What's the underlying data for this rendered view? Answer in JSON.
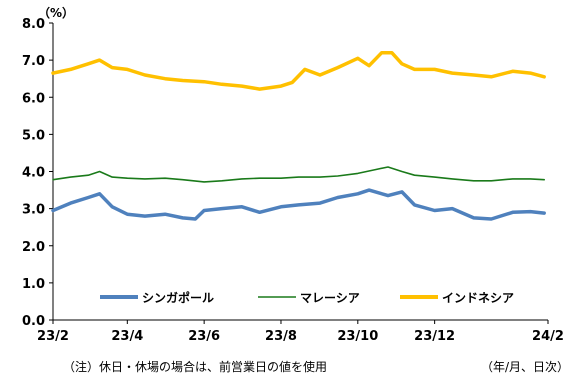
{
  "chart_data": {
    "type": "line",
    "unit_label": "（%）",
    "y_ticks": [
      "0.0",
      "1.0",
      "2.0",
      "3.0",
      "4.0",
      "5.0",
      "6.0",
      "7.0",
      "8.0"
    ],
    "ylim": [
      0,
      8
    ],
    "x_ticks": [
      "23/2",
      "23/4",
      "23/6",
      "23/8",
      "23/10",
      "23/12",
      "24/2"
    ],
    "x_range": [
      "2023-02-01",
      "2024-02-29"
    ],
    "grid": false,
    "legend_position": "bottom-inside",
    "series": [
      {
        "name": "シンガポール",
        "color": "#4f81bd",
        "x": [
          "2023-02-01",
          "2023-02-15",
          "2023-03-01",
          "2023-03-10",
          "2023-03-20",
          "2023-04-01",
          "2023-04-15",
          "2023-05-01",
          "2023-05-15",
          "2023-05-25",
          "2023-06-01",
          "2023-06-15",
          "2023-07-01",
          "2023-07-15",
          "2023-08-01",
          "2023-08-15",
          "2023-09-01",
          "2023-09-15",
          "2023-10-01",
          "2023-10-10",
          "2023-10-25",
          "2023-11-05",
          "2023-11-15",
          "2023-12-01",
          "2023-12-15",
          "2024-01-01",
          "2024-01-15",
          "2024-02-01",
          "2024-02-15",
          "2024-02-26"
        ],
        "values": [
          2.95,
          3.15,
          3.3,
          3.4,
          3.05,
          2.85,
          2.8,
          2.85,
          2.75,
          2.72,
          2.95,
          3.0,
          3.05,
          2.9,
          3.05,
          3.1,
          3.15,
          3.3,
          3.4,
          3.5,
          3.35,
          3.45,
          3.1,
          2.95,
          3.0,
          2.75,
          2.72,
          2.9,
          2.92,
          2.88
        ]
      },
      {
        "name": "マレーシア",
        "color": "#1a7a1a",
        "x": [
          "2023-02-01",
          "2023-02-15",
          "2023-03-01",
          "2023-03-10",
          "2023-03-20",
          "2023-04-01",
          "2023-04-15",
          "2023-05-01",
          "2023-05-15",
          "2023-06-01",
          "2023-06-15",
          "2023-07-01",
          "2023-07-15",
          "2023-08-01",
          "2023-08-15",
          "2023-09-01",
          "2023-09-15",
          "2023-10-01",
          "2023-10-15",
          "2023-10-25",
          "2023-11-05",
          "2023-11-15",
          "2023-12-01",
          "2023-12-15",
          "2024-01-01",
          "2024-01-15",
          "2024-02-01",
          "2024-02-15",
          "2024-02-26"
        ],
        "values": [
          3.78,
          3.85,
          3.9,
          4.0,
          3.85,
          3.82,
          3.8,
          3.82,
          3.78,
          3.72,
          3.75,
          3.8,
          3.82,
          3.82,
          3.85,
          3.85,
          3.88,
          3.95,
          4.05,
          4.12,
          4.0,
          3.9,
          3.85,
          3.8,
          3.75,
          3.75,
          3.8,
          3.8,
          3.78
        ]
      },
      {
        "name": "インドネシア",
        "color": "#ffc000",
        "x": [
          "2023-02-01",
          "2023-02-15",
          "2023-03-01",
          "2023-03-10",
          "2023-03-20",
          "2023-04-01",
          "2023-04-15",
          "2023-05-01",
          "2023-05-15",
          "2023-06-01",
          "2023-06-15",
          "2023-07-01",
          "2023-07-15",
          "2023-08-01",
          "2023-08-10",
          "2023-08-20",
          "2023-09-01",
          "2023-09-15",
          "2023-10-01",
          "2023-10-10",
          "2023-10-20",
          "2023-10-28",
          "2023-11-05",
          "2023-11-15",
          "2023-12-01",
          "2023-12-15",
          "2024-01-01",
          "2024-01-15",
          "2024-02-01",
          "2024-02-15",
          "2024-02-26"
        ],
        "values": [
          6.65,
          6.75,
          6.9,
          7.0,
          6.8,
          6.75,
          6.6,
          6.5,
          6.45,
          6.42,
          6.35,
          6.3,
          6.22,
          6.3,
          6.4,
          6.75,
          6.6,
          6.8,
          7.05,
          6.85,
          7.2,
          7.2,
          6.9,
          6.75,
          6.75,
          6.65,
          6.6,
          6.55,
          6.7,
          6.65,
          6.55
        ]
      }
    ]
  },
  "note": "（注）休日・休場の場合は、前営業日の値を使用",
  "date_format_label": "（年/月、日次）"
}
